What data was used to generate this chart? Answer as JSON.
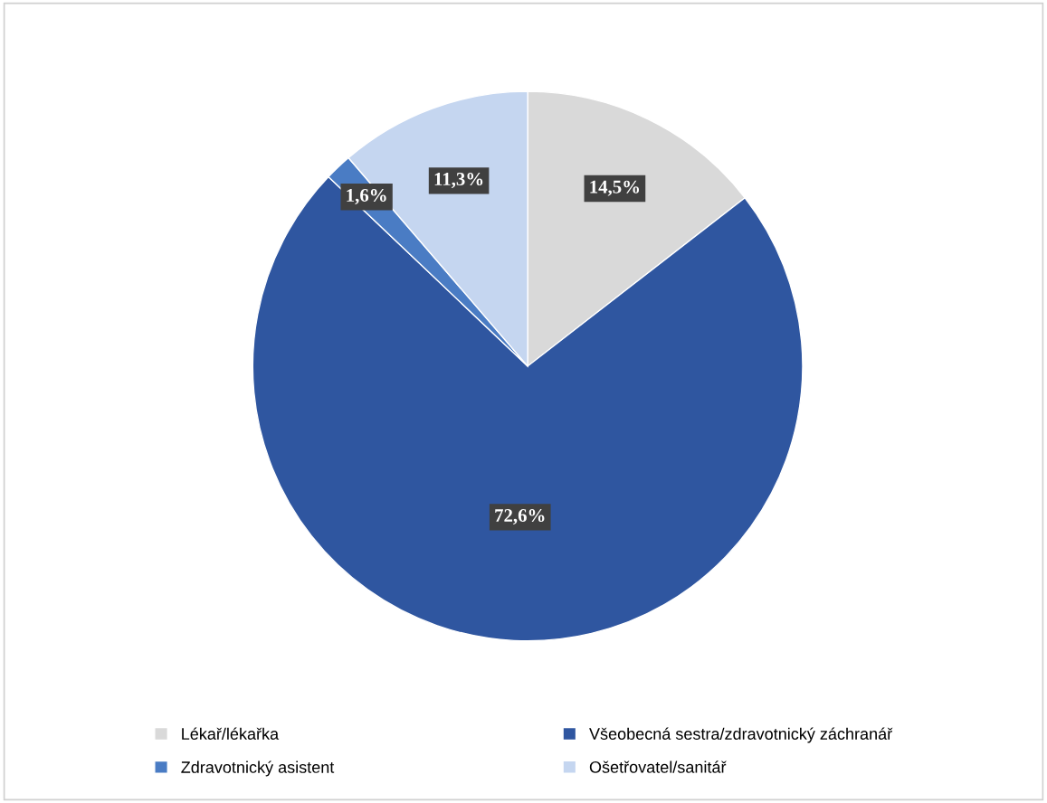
{
  "chart_data": {
    "type": "pie",
    "categories": [
      "Lékař/lékařka",
      "Všeobecná sestra/zdravotnický záchranář",
      "Zdravotnický asistent",
      "Ošetřovatel/sanitář"
    ],
    "values": [
      14.5,
      72.6,
      1.6,
      11.3
    ],
    "colors": [
      "#d9d9d9",
      "#2f56a0",
      "#4a7cc4",
      "#c5d6f0"
    ],
    "value_labels": [
      "14,5%",
      "72,6%",
      "1,6%",
      "11,3%"
    ],
    "legend": "bottom"
  }
}
